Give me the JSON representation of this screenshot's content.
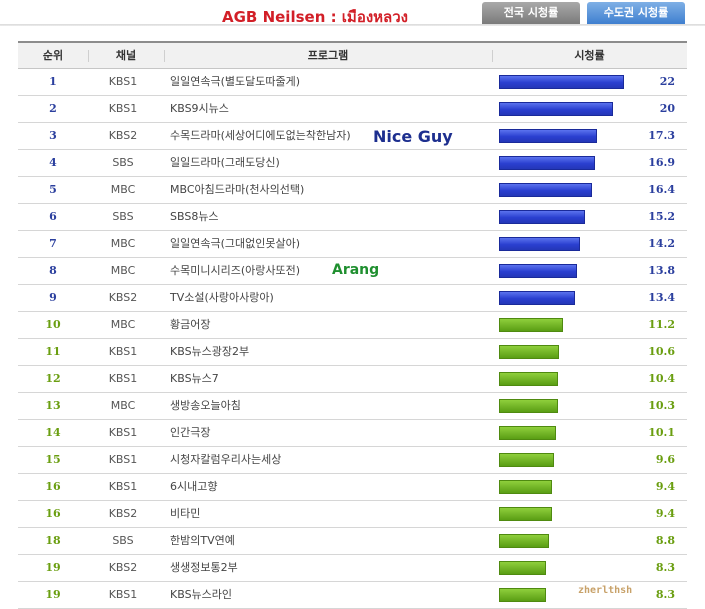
{
  "header": {
    "title": "AGB Neilsen : เมืองหลวง",
    "tabs": [
      {
        "label": "전국 시청률",
        "active": false
      },
      {
        "label": "수도권 시청률",
        "active": true
      }
    ]
  },
  "table": {
    "columns": [
      "순위",
      "채널",
      "프로그램",
      "시청률"
    ],
    "max_value": 22,
    "rows": [
      {
        "rank": "1",
        "channel": "KBS1",
        "program": "일일연속극(별도달도따줄게)",
        "value": "22",
        "rating": 22
      },
      {
        "rank": "2",
        "channel": "KBS1",
        "program": "KBS9시뉴스",
        "value": "20",
        "rating": 20
      },
      {
        "rank": "3",
        "channel": "KBS2",
        "program": "수목드라마(세상어디에도없는착한남자)",
        "value": "17.3",
        "rating": 17.3
      },
      {
        "rank": "4",
        "channel": "SBS",
        "program": "일일드라마(그래도당신)",
        "value": "16.9",
        "rating": 16.9
      },
      {
        "rank": "5",
        "channel": "MBC",
        "program": "MBC아침드라마(천사의선택)",
        "value": "16.4",
        "rating": 16.4
      },
      {
        "rank": "6",
        "channel": "SBS",
        "program": "SBS8뉴스",
        "value": "15.2",
        "rating": 15.2
      },
      {
        "rank": "7",
        "channel": "MBC",
        "program": "일일연속극(그대없인못살아)",
        "value": "14.2",
        "rating": 14.2
      },
      {
        "rank": "8",
        "channel": "MBC",
        "program": "수목미니시리즈(아랑사또전)",
        "value": "13.8",
        "rating": 13.8
      },
      {
        "rank": "9",
        "channel": "KBS2",
        "program": "TV소설(사랑아사랑아)",
        "value": "13.4",
        "rating": 13.4
      },
      {
        "rank": "10",
        "channel": "MBC",
        "program": "황금어장",
        "value": "11.2",
        "rating": 11.2
      },
      {
        "rank": "11",
        "channel": "KBS1",
        "program": "KBS뉴스광장2부",
        "value": "10.6",
        "rating": 10.6
      },
      {
        "rank": "12",
        "channel": "KBS1",
        "program": "KBS뉴스7",
        "value": "10.4",
        "rating": 10.4
      },
      {
        "rank": "13",
        "channel": "MBC",
        "program": "생방송오늘아침",
        "value": "10.3",
        "rating": 10.3
      },
      {
        "rank": "14",
        "channel": "KBS1",
        "program": "인간극장",
        "value": "10.1",
        "rating": 10.1
      },
      {
        "rank": "15",
        "channel": "KBS1",
        "program": "시청자칼럼우리사는세상",
        "value": "9.6",
        "rating": 9.6
      },
      {
        "rank": "16",
        "channel": "KBS1",
        "program": "6시내고향",
        "value": "9.4",
        "rating": 9.4
      },
      {
        "rank": "16",
        "channel": "KBS2",
        "program": "비타민",
        "value": "9.4",
        "rating": 9.4
      },
      {
        "rank": "18",
        "channel": "SBS",
        "program": "한밤의TV연예",
        "value": "8.8",
        "rating": 8.8
      },
      {
        "rank": "19",
        "channel": "KBS2",
        "program": "생생정보통2부",
        "value": "8.3",
        "rating": 8.3
      },
      {
        "rank": "19",
        "channel": "KBS1",
        "program": "KBS뉴스라인",
        "value": "8.3",
        "rating": 8.3
      }
    ]
  },
  "annotations": {
    "nice_guy": "Nice Guy",
    "arang": "Arang",
    "watermark": "zherlthsh"
  },
  "colors": {
    "title": "#d21f27",
    "top_bar": "#2a3fd0",
    "rest_bar": "#6aae1c",
    "top_text": "#2b3f9e",
    "rest_text": "#6a9e10"
  }
}
